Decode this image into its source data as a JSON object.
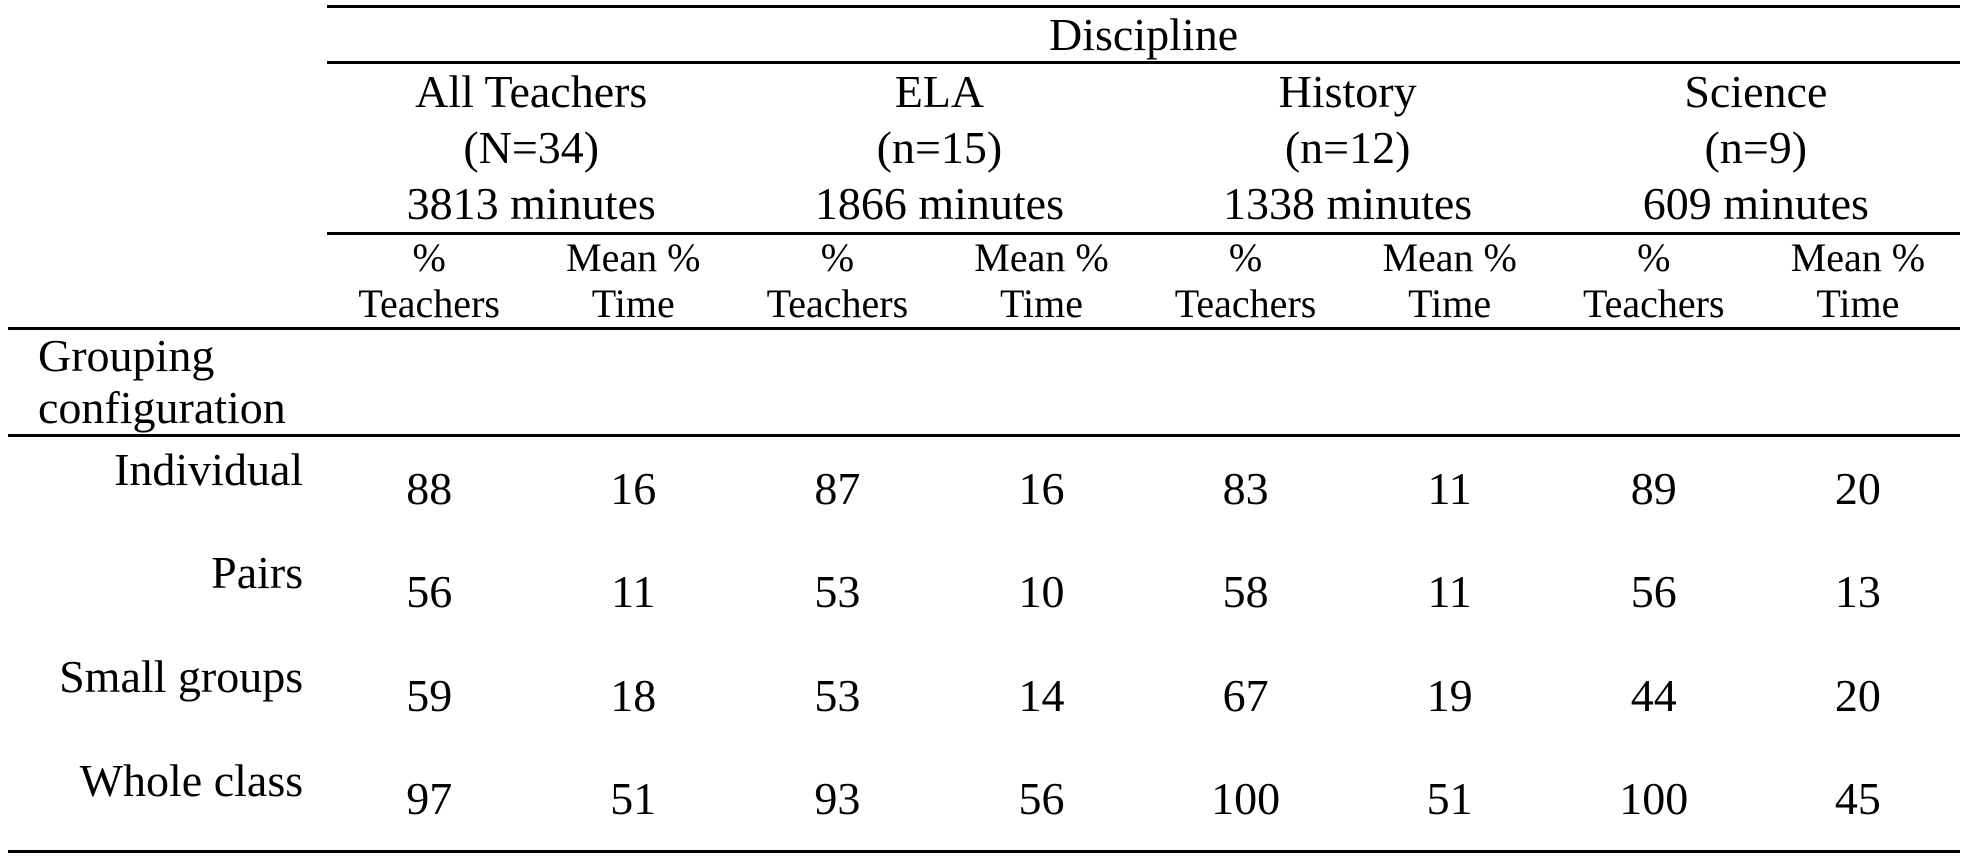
{
  "table": {
    "title": "Discipline",
    "stub_header": "Grouping configuration",
    "subheader_pct": [
      "%",
      "Teachers"
    ],
    "subheader_time": [
      "Mean %",
      "Time"
    ],
    "groups": [
      {
        "name": "All Teachers",
        "n": "(N=34)",
        "minutes": "3813 minutes"
      },
      {
        "name": "ELA",
        "n": "(n=15)",
        "minutes": "1866 minutes"
      },
      {
        "name": "History",
        "n": "(n=12)",
        "minutes": "1338 minutes"
      },
      {
        "name": "Science",
        "n": "(n=9)",
        "minutes": "609 minutes"
      }
    ],
    "rows": [
      {
        "label": "Individual",
        "values": [
          88,
          16,
          87,
          16,
          83,
          11,
          89,
          20
        ]
      },
      {
        "label": "Pairs",
        "values": [
          56,
          11,
          53,
          10,
          58,
          11,
          56,
          13
        ]
      },
      {
        "label": "Small groups",
        "values": [
          59,
          18,
          53,
          14,
          67,
          19,
          44,
          20
        ]
      },
      {
        "label": "Whole class",
        "values": [
          97,
          51,
          93,
          56,
          100,
          51,
          100,
          45
        ]
      }
    ]
  },
  "chart_data": {
    "type": "table",
    "title": "Discipline",
    "column_groups": [
      "All Teachers (N=34) 3813 minutes",
      "ELA (n=15) 1866 minutes",
      "History (n=12) 1338 minutes",
      "Science (n=9) 609 minutes"
    ],
    "columns": [
      "% Teachers",
      "Mean % Time",
      "% Teachers",
      "Mean % Time",
      "% Teachers",
      "Mean % Time",
      "% Teachers",
      "Mean % Time"
    ],
    "row_header": "Grouping configuration",
    "categories": [
      "Individual",
      "Pairs",
      "Small groups",
      "Whole class"
    ],
    "values": [
      [
        88,
        16,
        87,
        16,
        83,
        11,
        89,
        20
      ],
      [
        56,
        11,
        53,
        10,
        58,
        11,
        56,
        13
      ],
      [
        59,
        18,
        53,
        14,
        67,
        19,
        44,
        20
      ],
      [
        97,
        51,
        93,
        56,
        100,
        51,
        100,
        45
      ]
    ]
  }
}
